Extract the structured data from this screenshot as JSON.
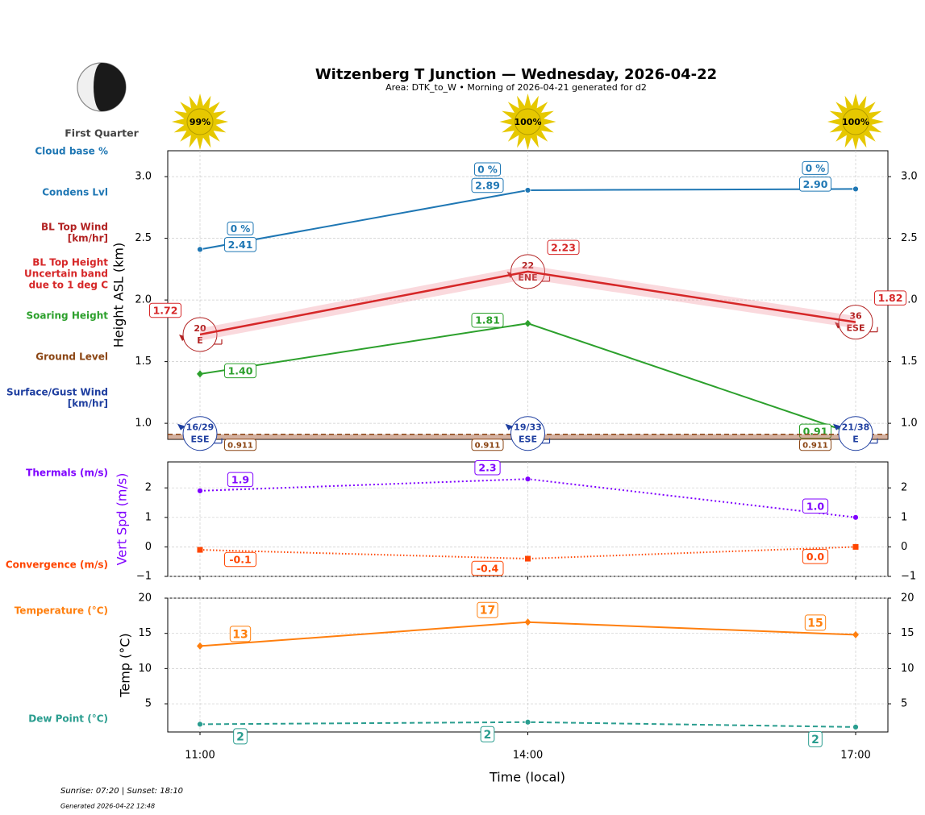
{
  "header": {
    "title": "Witzenberg T Junction — Wednesday, 2026-04-22",
    "subtitle": "Area: DTK_to_W • Morning of 2026-04-21 generated for d2",
    "moon_phase": "First Quarter",
    "sun": {
      "values": [
        99,
        100,
        100
      ],
      "value_labels": [
        "99%",
        "100%",
        "100%"
      ]
    },
    "footer": [
      "Sunrise: 07:20 | Sunset: 18:10",
      "Generated 2026-04-22 12:48"
    ]
  },
  "chart_data": [
    {
      "type": "line",
      "y_label": "Height ASL (km)",
      "categories": [
        "11:00",
        "14:00",
        "17:00"
      ],
      "ylim": [
        0.87,
        3.21
      ],
      "grid": true,
      "yticks": [
        {
          "value": 1,
          "label": "1.0"
        },
        {
          "value": 1.5,
          "label": "1.5"
        },
        {
          "value": 2,
          "label": "2.0"
        },
        {
          "value": 2.5,
          "label": "2.5"
        },
        {
          "value": 3,
          "label": "3.0"
        }
      ],
      "series": [
        {
          "name": "Cloud base %",
          "kind": "text",
          "color": "#1f77b4",
          "values": [
            0,
            0,
            0
          ],
          "value_labels": [
            "0 %",
            "0 %",
            "0 %"
          ]
        },
        {
          "name": "Condens Lvl",
          "color": "#1f77b4",
          "marker": "circle",
          "style": "solid",
          "values": [
            2.41,
            2.89,
            2.9
          ],
          "value_labels": [
            "2.41",
            "2.89",
            "2.90"
          ]
        },
        {
          "name": [
            "BL Top Wind",
            "[km/hr]"
          ],
          "kind": "wind",
          "color": "#b22222",
          "values": [
            20,
            22,
            36
          ],
          "directions": [
            "E",
            "ENE",
            "ESE"
          ]
        },
        {
          "name": [
            "BL Top Height",
            "Uncertain band",
            "due to 1 deg C"
          ],
          "color": "#d62728",
          "style": "solid",
          "values": [
            1.72,
            2.23,
            1.82
          ],
          "lower": [
            1.67,
            2.17,
            1.77
          ],
          "upper": [
            1.77,
            2.28,
            1.87
          ],
          "value_labels": [
            "1.72",
            "2.23",
            "1.82"
          ]
        },
        {
          "name": "Soaring Height",
          "color": "#2ca02c",
          "marker": "diamond",
          "style": "solid",
          "values": [
            1.4,
            1.81,
            0.91
          ],
          "value_labels": [
            "1.40",
            "1.81",
            "0.91"
          ]
        },
        {
          "name": "Ground Level",
          "kind": "ground",
          "color": "#8b4513",
          "style": "dashed",
          "values": [
            0.911,
            0.911,
            0.911
          ]
        },
        {
          "name": [
            "Surface/Gust Wind",
            "[km/hr]"
          ],
          "kind": "wind",
          "color": "#1f3fa0",
          "values": [
            16,
            19,
            21
          ],
          "gusts": [
            29,
            33,
            38
          ],
          "value_labels": [
            "16/29",
            "19/33",
            "21/38"
          ],
          "directions": [
            "ESE",
            "ESE",
            "E"
          ]
        }
      ]
    },
    {
      "type": "line",
      "y_label": "Vert Spd (m/s)",
      "y_label_color": "#7f00ff",
      "categories": [
        "11:00",
        "14:00",
        "17:00"
      ],
      "ylim": [
        -1,
        2.88
      ],
      "grid": true,
      "yticks": [
        {
          "value": -1,
          "label": "−1"
        },
        0,
        1,
        2
      ],
      "series": [
        {
          "name": "Thermals (m/s)",
          "color": "#7f00ff",
          "marker": "circle",
          "style": "dotted",
          "values": [
            1.9,
            2.3,
            1.0
          ],
          "value_labels": [
            "1.9",
            "2.3",
            "1.0"
          ]
        },
        {
          "name": "Convergence (m/s)",
          "color": "#ff4500",
          "marker": "square",
          "style": "finedotted",
          "values": [
            -0.1,
            -0.4,
            0.0
          ],
          "value_labels": [
            "-0.1",
            "-0.4",
            "0.0"
          ]
        }
      ]
    },
    {
      "type": "line",
      "y_label": "Temp (°C)",
      "x_label": "Time (local)",
      "categories": [
        "11:00",
        "14:00",
        "17:00"
      ],
      "ylim": [
        1,
        20
      ],
      "grid": true,
      "yticks": [
        5,
        10,
        15,
        20
      ],
      "series": [
        {
          "name": "Temperature (°C)",
          "color": "#ff7f0e",
          "marker": "diamond",
          "style": "solid",
          "values": [
            13.2,
            16.6,
            14.8
          ],
          "value_labels": [
            "13",
            "17",
            "15"
          ]
        },
        {
          "name": "Dew Point (°C)",
          "color": "#2a9d8f",
          "marker": "circle",
          "style": "dashed",
          "values": [
            2.1,
            2.4,
            1.7
          ],
          "value_labels": [
            "2",
            "2",
            "2"
          ]
        }
      ]
    }
  ]
}
